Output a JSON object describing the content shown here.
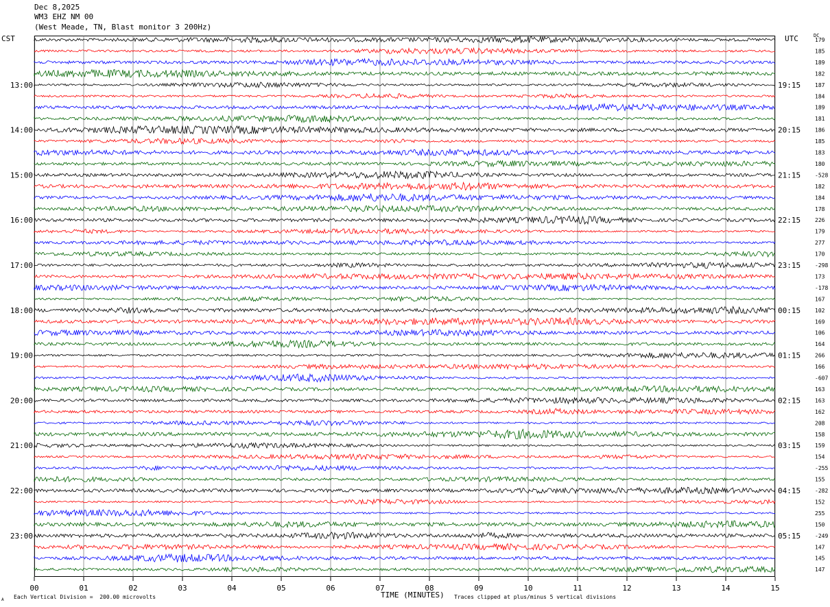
{
  "header": {
    "date": "Dec 8,2025",
    "station": "WM3 EHZ NM 00",
    "location": "(West Meade, TN, Blast monitor 3 200Hz)"
  },
  "left_tz": "CST",
  "right_tz": "UTC",
  "dc_label": "DC",
  "chart_data": {
    "type": "line",
    "title": "",
    "xlabel": "TIME (MINUTES)",
    "xlim": [
      0,
      15
    ],
    "x_ticks": [
      "00",
      "01",
      "02",
      "03",
      "04",
      "05",
      "06",
      "07",
      "08",
      "09",
      "10",
      "11",
      "12",
      "13",
      "14",
      "15"
    ],
    "rows_per_hour": 4,
    "trace_colors": [
      "#000000",
      "#ff0000",
      "#0000ff",
      "#006400"
    ],
    "left_hour_labels": [
      "13:00",
      "14:00",
      "15:00",
      "16:00",
      "17:00",
      "18:00",
      "19:00",
      "20:00",
      "21:00",
      "22:00",
      "23:00"
    ],
    "left_label_rows": [
      4,
      8,
      12,
      16,
      20,
      24,
      28,
      32,
      36,
      40,
      44
    ],
    "right_hour_labels": [
      "19:15",
      "20:15",
      "21:15",
      "22:15",
      "23:15",
      "00:15",
      "01:15",
      "02:15",
      "03:15",
      "04:15",
      "05:15"
    ],
    "dc_values": [
      "179",
      "185",
      "189",
      "182",
      "187",
      "184",
      "189",
      "181",
      "186",
      "185",
      "183",
      "180",
      "-528",
      "182",
      "184",
      "178",
      "226",
      "179",
      "277",
      "170",
      "-298",
      "173",
      "-178",
      "167",
      "102",
      "169",
      "106",
      "164",
      "266",
      "166",
      "-607",
      "163",
      "163",
      "162",
      "208",
      "158",
      "159",
      "154",
      "-255",
      "155",
      "-282",
      "152",
      "255",
      "150",
      "-249",
      "147",
      "145",
      "147"
    ],
    "n_rows": 48
  },
  "footer": {
    "scale_note": "Each Vertical Division =  200.00 microvolts",
    "clip_note": "Traces clipped at plus/minus 5 vertical divisions",
    "corner_mark": "A"
  }
}
